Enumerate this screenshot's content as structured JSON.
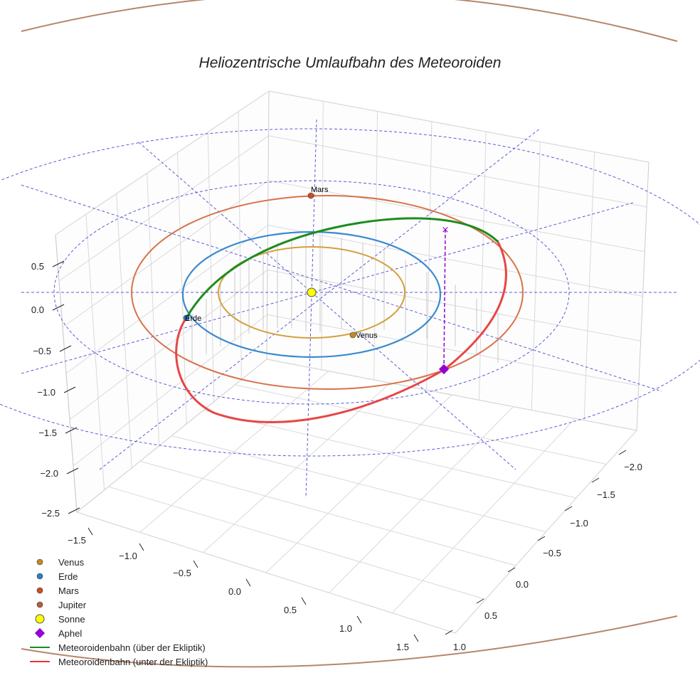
{
  "chart_data": {
    "type": "line",
    "projection": "3d",
    "title": "Heliozentrische Umlaufbahn des Meteoroiden",
    "xlabel": "",
    "ylabel": "",
    "zlabel": "",
    "x_ticks": [
      "−1.5",
      "−1.0",
      "−0.5",
      "0.0",
      "0.5",
      "1.0",
      "1.5"
    ],
    "y_ticks": [
      "−2.0",
      "−1.5",
      "−1.0",
      "−0.5",
      "0.0",
      "0.5",
      "1.0"
    ],
    "z_ticks": [
      "0.5",
      "0.0",
      "−0.5",
      "−1.0",
      "−1.5",
      "−2.0",
      "−2.5"
    ],
    "planets": [
      {
        "name": "Venus",
        "orbit_radius_au": 0.72,
        "color": "#d4a040",
        "marker_color": "#c98a1d",
        "label": "Venus"
      },
      {
        "name": "Erde",
        "orbit_radius_au": 1.0,
        "color": "#3a8ad0",
        "marker_color": "#2f7fc1",
        "label": "Erde"
      },
      {
        "name": "Mars",
        "orbit_radius_au": 1.52,
        "color": "#d9714a",
        "marker_color": "#cc4f1f",
        "label": "Mars"
      },
      {
        "name": "Jupiter",
        "orbit_radius_au": 5.2,
        "color": "#b5866a",
        "marker_color": "#b3603a",
        "label": ""
      }
    ],
    "sun": {
      "name": "Sonne",
      "color": "#ffff00"
    },
    "meteoroid_orbit": {
      "above_ecliptic": {
        "name": "Meteoroidenbahn (über der Ekliptik)",
        "color": "#1e8c1e"
      },
      "below_ecliptic": {
        "name": "Meteoroidenbahn (unter der Ekliptik)",
        "color": "#e83232"
      }
    },
    "aphel": {
      "name": "Aphel",
      "color": "#9400d3"
    }
  },
  "legend": [
    {
      "label": "Venus",
      "kind": "dot",
      "color": "#c98a1d"
    },
    {
      "label": "Erde",
      "kind": "dot",
      "color": "#2f7fc1"
    },
    {
      "label": "Mars",
      "kind": "dot",
      "color": "#cc4f1f"
    },
    {
      "label": "Jupiter",
      "kind": "dot",
      "color": "#b3603a"
    },
    {
      "label": "Sonne",
      "kind": "sun",
      "color": "#ffff00"
    },
    {
      "label": "Aphel",
      "kind": "diamond",
      "color": "#9400d3"
    },
    {
      "label": "Meteoroidenbahn (über der Ekliptik)",
      "kind": "line",
      "color": "#1e8c1e"
    },
    {
      "label": "Meteoroidenbahn (unter der Ekliptik)",
      "kind": "line",
      "color": "#e83232"
    }
  ]
}
